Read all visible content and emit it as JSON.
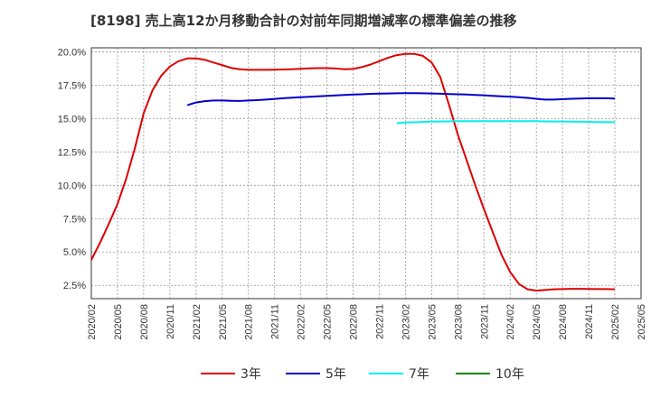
{
  "chart_data": {
    "type": "line",
    "title": "[8198]  売上高12か月移動合計の対前年同期増減率の標準偏差の推移",
    "x_ticks": [
      "2020/02",
      "2020/05",
      "2020/08",
      "2020/11",
      "2021/02",
      "2021/05",
      "2021/08",
      "2021/11",
      "2022/02",
      "2022/05",
      "2022/08",
      "2022/11",
      "2023/02",
      "2023/05",
      "2023/08",
      "2023/11",
      "2024/02",
      "2024/05",
      "2024/08",
      "2024/11",
      "2025/02",
      "2025/05"
    ],
    "y_ticks": [
      "2.5%",
      "5.0%",
      "7.5%",
      "10.0%",
      "12.5%",
      "15.0%",
      "17.5%",
      "20.0%"
    ],
    "y_tick_values": [
      2.5,
      5.0,
      7.5,
      10.0,
      12.5,
      15.0,
      17.5,
      20.0
    ],
    "ylim": [
      1.5,
      20.3
    ],
    "x_start": "2020/02",
    "x_months_total": 63,
    "grid": true,
    "series": [
      {
        "name": "3年",
        "color": "#dd0000",
        "start_offset": 0,
        "values": [
          4.4,
          5.7,
          7.1,
          8.6,
          10.5,
          12.8,
          15.4,
          17.1,
          18.2,
          18.9,
          19.3,
          19.5,
          19.5,
          19.4,
          19.2,
          19.0,
          18.8,
          18.7,
          18.65,
          18.65,
          18.65,
          18.66,
          18.68,
          18.7,
          18.73,
          18.76,
          18.78,
          18.78,
          18.75,
          18.7,
          18.72,
          18.85,
          19.05,
          19.3,
          19.55,
          19.75,
          19.85,
          19.85,
          19.7,
          19.2,
          18.1,
          16.0,
          13.8,
          11.9,
          10.0,
          8.2,
          6.5,
          4.8,
          3.5,
          2.6,
          2.2,
          2.1,
          2.15,
          2.2,
          2.22,
          2.24,
          2.24,
          2.23,
          2.22,
          2.22,
          2.2
        ]
      },
      {
        "name": "5年",
        "color": "#0000cc",
        "start_offset": 11,
        "values": [
          16.0,
          16.2,
          16.3,
          16.35,
          16.35,
          16.33,
          16.32,
          16.35,
          16.38,
          16.42,
          16.47,
          16.52,
          16.56,
          16.6,
          16.63,
          16.66,
          16.7,
          16.73,
          16.77,
          16.8,
          16.82,
          16.85,
          16.87,
          16.88,
          16.89,
          16.9,
          16.9,
          16.89,
          16.88,
          16.86,
          16.84,
          16.82,
          16.8,
          16.77,
          16.74,
          16.7,
          16.67,
          16.64,
          16.6,
          16.55,
          16.48,
          16.42,
          16.42,
          16.45,
          16.48,
          16.5,
          16.52,
          16.52,
          16.52,
          16.5
        ]
      },
      {
        "name": "7年",
        "color": "#00eeee",
        "start_offset": 35,
        "values": [
          14.65,
          14.7,
          14.72,
          14.75,
          14.77,
          14.78,
          14.79,
          14.8,
          14.8,
          14.81,
          14.81,
          14.81,
          14.81,
          14.8,
          14.8,
          14.8,
          14.8,
          14.79,
          14.78,
          14.78,
          14.77,
          14.76,
          14.75,
          14.74,
          14.73,
          14.72
        ]
      },
      {
        "name": "10年",
        "color": "#008800",
        "start_offset": 0,
        "values": []
      }
    ]
  }
}
